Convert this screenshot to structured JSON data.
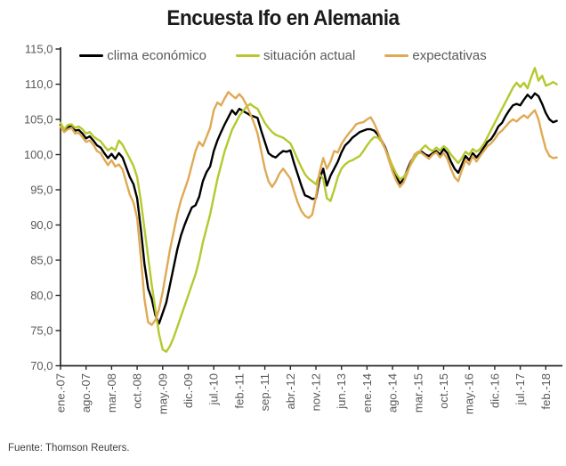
{
  "title": "Encuesta Ifo en Alemania",
  "source": "Fuente: Thomson Reuters.",
  "axis_color": "#262626",
  "label_color": "#595959",
  "chart_data": {
    "type": "line",
    "title": "Encuesta Ifo en Alemania",
    "xlabel": "",
    "ylabel": "",
    "ylim": [
      70,
      115
    ],
    "y_tick_step": 5,
    "y_tick_format": "comma-decimal-1",
    "grid": false,
    "legend_position": "top",
    "x_unit": "monthly from ene.-07 to may.-18",
    "months_per_tick": 7,
    "x_tick_labels": [
      "ene.-07",
      "ago.-07",
      "mar.-08",
      "oct.-08",
      "may.-09",
      "dic.-09",
      "jul.-10",
      "feb.-11",
      "sep.-11",
      "abr.-12",
      "nov.-12",
      "jun.-13",
      "ene.-14",
      "ago.-14",
      "mar.-15",
      "oct.-15",
      "may.-16",
      "dic.-16",
      "jul.-17",
      "feb.-18"
    ],
    "series": [
      {
        "name": "clima económico",
        "color": "#000000",
        "values": [
          104.2,
          103.4,
          103.9,
          104.0,
          103.4,
          103.5,
          103.0,
          102.3,
          102.6,
          102.0,
          101.3,
          101.0,
          100.2,
          99.5,
          100.1,
          99.4,
          100.2,
          99.6,
          98.2,
          96.8,
          95.8,
          93.8,
          89.5,
          84.5,
          81.0,
          79.5,
          77.2,
          76.0,
          77.5,
          79.0,
          81.5,
          84.0,
          86.5,
          88.5,
          90.0,
          91.3,
          92.5,
          92.8,
          94.0,
          96.2,
          97.5,
          98.3,
          100.5,
          102.0,
          103.2,
          104.3,
          105.3,
          106.3,
          105.7,
          106.5,
          106.2,
          105.9,
          105.6,
          105.4,
          105.2,
          103.4,
          101.8,
          100.2,
          99.8,
          99.6,
          100.1,
          100.5,
          100.4,
          100.6,
          98.8,
          97.2,
          95.6,
          94.2,
          94.0,
          93.7,
          93.8,
          96.5,
          98.0,
          95.6,
          97.0,
          98.0,
          99.0,
          100.3,
          101.3,
          101.8,
          102.4,
          102.8,
          103.2,
          103.4,
          103.6,
          103.6,
          103.4,
          102.8,
          102.0,
          101.0,
          99.6,
          98.2,
          96.9,
          95.9,
          96.5,
          97.8,
          99.0,
          99.8,
          100.2,
          100.4,
          100.0,
          99.8,
          100.2,
          100.5,
          100.0,
          100.8,
          100.2,
          99.0,
          98.0,
          97.4,
          98.6,
          99.8,
          99.2,
          100.2,
          99.6,
          100.2,
          101.0,
          101.8,
          102.2,
          103.0,
          104.0,
          104.5,
          105.5,
          106.3,
          107.0,
          107.2,
          107.0,
          107.8,
          108.5,
          108.0,
          108.7,
          108.3,
          107.2,
          105.9,
          105.0,
          104.6,
          104.8
        ]
      },
      {
        "name": "situación actual",
        "color": "#b5c92e",
        "values": [
          104.5,
          103.6,
          104.2,
          104.3,
          103.8,
          104.0,
          103.6,
          103.0,
          103.2,
          102.6,
          102.2,
          101.9,
          101.2,
          100.6,
          101.0,
          100.6,
          102.0,
          101.4,
          100.4,
          99.4,
          98.4,
          96.8,
          93.5,
          89.5,
          85.5,
          81.5,
          78.0,
          74.5,
          72.3,
          72.0,
          72.8,
          74.0,
          75.5,
          77.0,
          78.5,
          80.0,
          81.5,
          83.0,
          85.0,
          87.5,
          89.5,
          91.5,
          94.0,
          96.5,
          98.5,
          100.5,
          102.0,
          103.5,
          104.5,
          105.5,
          106.2,
          106.8,
          107.2,
          106.8,
          106.5,
          105.5,
          104.5,
          103.8,
          103.2,
          102.8,
          102.6,
          102.4,
          102.0,
          101.6,
          100.5,
          99.3,
          98.2,
          97.2,
          96.6,
          96.2,
          95.8,
          97.2,
          96.6,
          93.8,
          93.4,
          95.0,
          96.8,
          98.0,
          98.6,
          99.0,
          99.2,
          99.5,
          99.8,
          100.5,
          101.3,
          102.0,
          102.5,
          102.4,
          101.8,
          100.8,
          99.6,
          98.4,
          97.3,
          96.5,
          96.8,
          97.6,
          98.6,
          99.5,
          100.2,
          100.8,
          101.3,
          100.8,
          100.5,
          101.0,
          100.6,
          101.2,
          100.8,
          100.0,
          99.4,
          98.8,
          99.5,
          100.4,
          100.0,
          100.8,
          100.4,
          100.8,
          101.5,
          102.5,
          103.5,
          104.5,
          105.5,
          106.5,
          107.5,
          108.5,
          109.5,
          110.2,
          109.6,
          110.2,
          109.4,
          111.0,
          112.3,
          110.5,
          111.2,
          109.8,
          110.0,
          110.3,
          110.0
        ]
      },
      {
        "name": "expectativas",
        "color": "#e0a954",
        "values": [
          104.0,
          103.2,
          103.6,
          103.8,
          103.0,
          103.1,
          102.5,
          101.8,
          102.0,
          101.4,
          100.5,
          100.2,
          99.3,
          98.5,
          99.2,
          98.3,
          98.6,
          97.9,
          96.1,
          94.3,
          93.2,
          91.0,
          85.5,
          79.5,
          76.2,
          75.8,
          76.5,
          78.0,
          80.5,
          83.5,
          86.5,
          89.0,
          91.5,
          93.5,
          95.0,
          96.5,
          98.5,
          100.5,
          101.8,
          101.2,
          102.5,
          103.8,
          106.3,
          107.4,
          107.0,
          108.0,
          108.9,
          108.4,
          108.0,
          108.6,
          108.0,
          107.0,
          105.8,
          104.5,
          103.0,
          100.5,
          98.0,
          96.2,
          95.4,
          96.2,
          97.3,
          98.0,
          97.3,
          96.6,
          94.8,
          93.2,
          92.0,
          91.3,
          91.0,
          91.5,
          94.0,
          97.5,
          99.5,
          98.0,
          99.0,
          100.5,
          100.3,
          101.5,
          102.3,
          103.0,
          103.6,
          104.3,
          104.5,
          104.6,
          105.0,
          105.3,
          104.4,
          103.2,
          102.0,
          100.8,
          99.2,
          97.6,
          96.3,
          95.4,
          96.0,
          97.3,
          98.8,
          100.0,
          100.4,
          100.2,
          99.8,
          99.4,
          100.0,
          100.3,
          99.6,
          100.2,
          99.4,
          98.0,
          96.8,
          96.2,
          97.8,
          99.2,
          98.6,
          99.8,
          99.0,
          99.8,
          100.5,
          101.2,
          101.6,
          102.2,
          103.0,
          103.4,
          104.0,
          104.6,
          105.0,
          104.7,
          105.2,
          105.6,
          105.2,
          105.8,
          106.3,
          105.0,
          102.8,
          100.8,
          99.8,
          99.5,
          99.6
        ]
      }
    ]
  }
}
